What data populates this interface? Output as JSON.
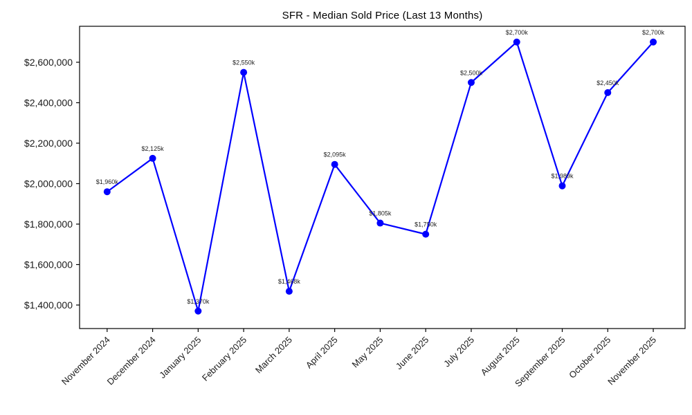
{
  "page": {
    "background_color": "#ffffff",
    "text_color": "#000000"
  },
  "chart_data": {
    "type": "line",
    "title": "SFR - Median Sold Price (Last 13 Months)",
    "xlabel": "",
    "ylabel": "",
    "grid": false,
    "legend": "none",
    "categories": [
      "November 2024",
      "December 2024",
      "January 2025",
      "February 2025",
      "March 2025",
      "April 2025",
      "May 2025",
      "June 2025",
      "July 2025",
      "August 2025",
      "September 2025",
      "October 2025",
      "November 2025"
    ],
    "series": [
      {
        "name": "Median Sold Price",
        "color": "#0000FF",
        "marker": "circle",
        "values": [
          1960000,
          2125000,
          1370000,
          2550000,
          1468000,
          2095000,
          1805000,
          1750000,
          2500000,
          2700000,
          1989000,
          2450000,
          2700000
        ],
        "point_labels": [
          "$1,960k",
          "$2,125k",
          "$1,370k",
          "$2,550k",
          "$1,468k",
          "$2,095k",
          "$1,805k",
          "$1,750k",
          "$2,500k",
          "$2,700k",
          "$1,989k",
          "$2,450k",
          "$2,700k"
        ]
      }
    ],
    "y_ticks": {
      "values": [
        1400000,
        1600000,
        1800000,
        2000000,
        2200000,
        2400000,
        2600000
      ],
      "labels": [
        "$1,400,000",
        "$1,600,000",
        "$1,800,000",
        "$2,000,000",
        "$2,200,000",
        "$2,400,000",
        "$2,600,000"
      ]
    },
    "ylim": [
      1283760,
      2777778
    ],
    "axis_color": "#000000",
    "tick_label_color": "#1a1a1a",
    "point_label_color": "#222222"
  }
}
